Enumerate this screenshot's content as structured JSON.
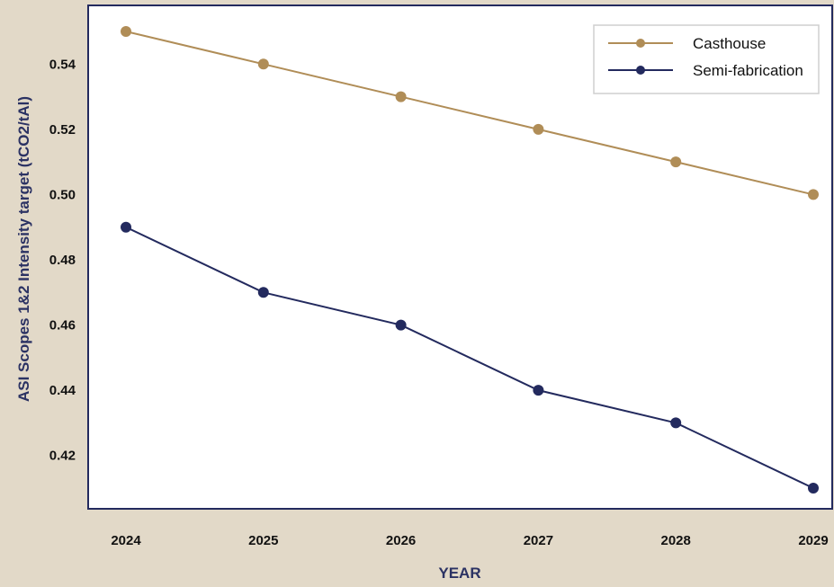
{
  "chart_data": {
    "type": "line",
    "title": "",
    "xlabel": "YEAR",
    "ylabel": "ASI Scopes 1&2 Intensity target (tCO2/tAl)",
    "x": [
      "2024",
      "2025",
      "2026",
      "2027",
      "2028",
      "2029"
    ],
    "ylim": [
      0.405,
      0.555
    ],
    "yticks": [
      "0.42",
      "0.44",
      "0.46",
      "0.48",
      "0.50",
      "0.52",
      "0.54"
    ],
    "grid": false,
    "legend_position": "top-right",
    "series": [
      {
        "name": "Casthouse",
        "color": "#b08d57",
        "values": [
          0.55,
          0.54,
          0.53,
          0.52,
          0.51,
          0.5
        ]
      },
      {
        "name": "Semi-fabrication",
        "color": "#232a5e",
        "values": [
          0.49,
          0.47,
          0.46,
          0.44,
          0.43,
          0.41
        ]
      }
    ]
  }
}
